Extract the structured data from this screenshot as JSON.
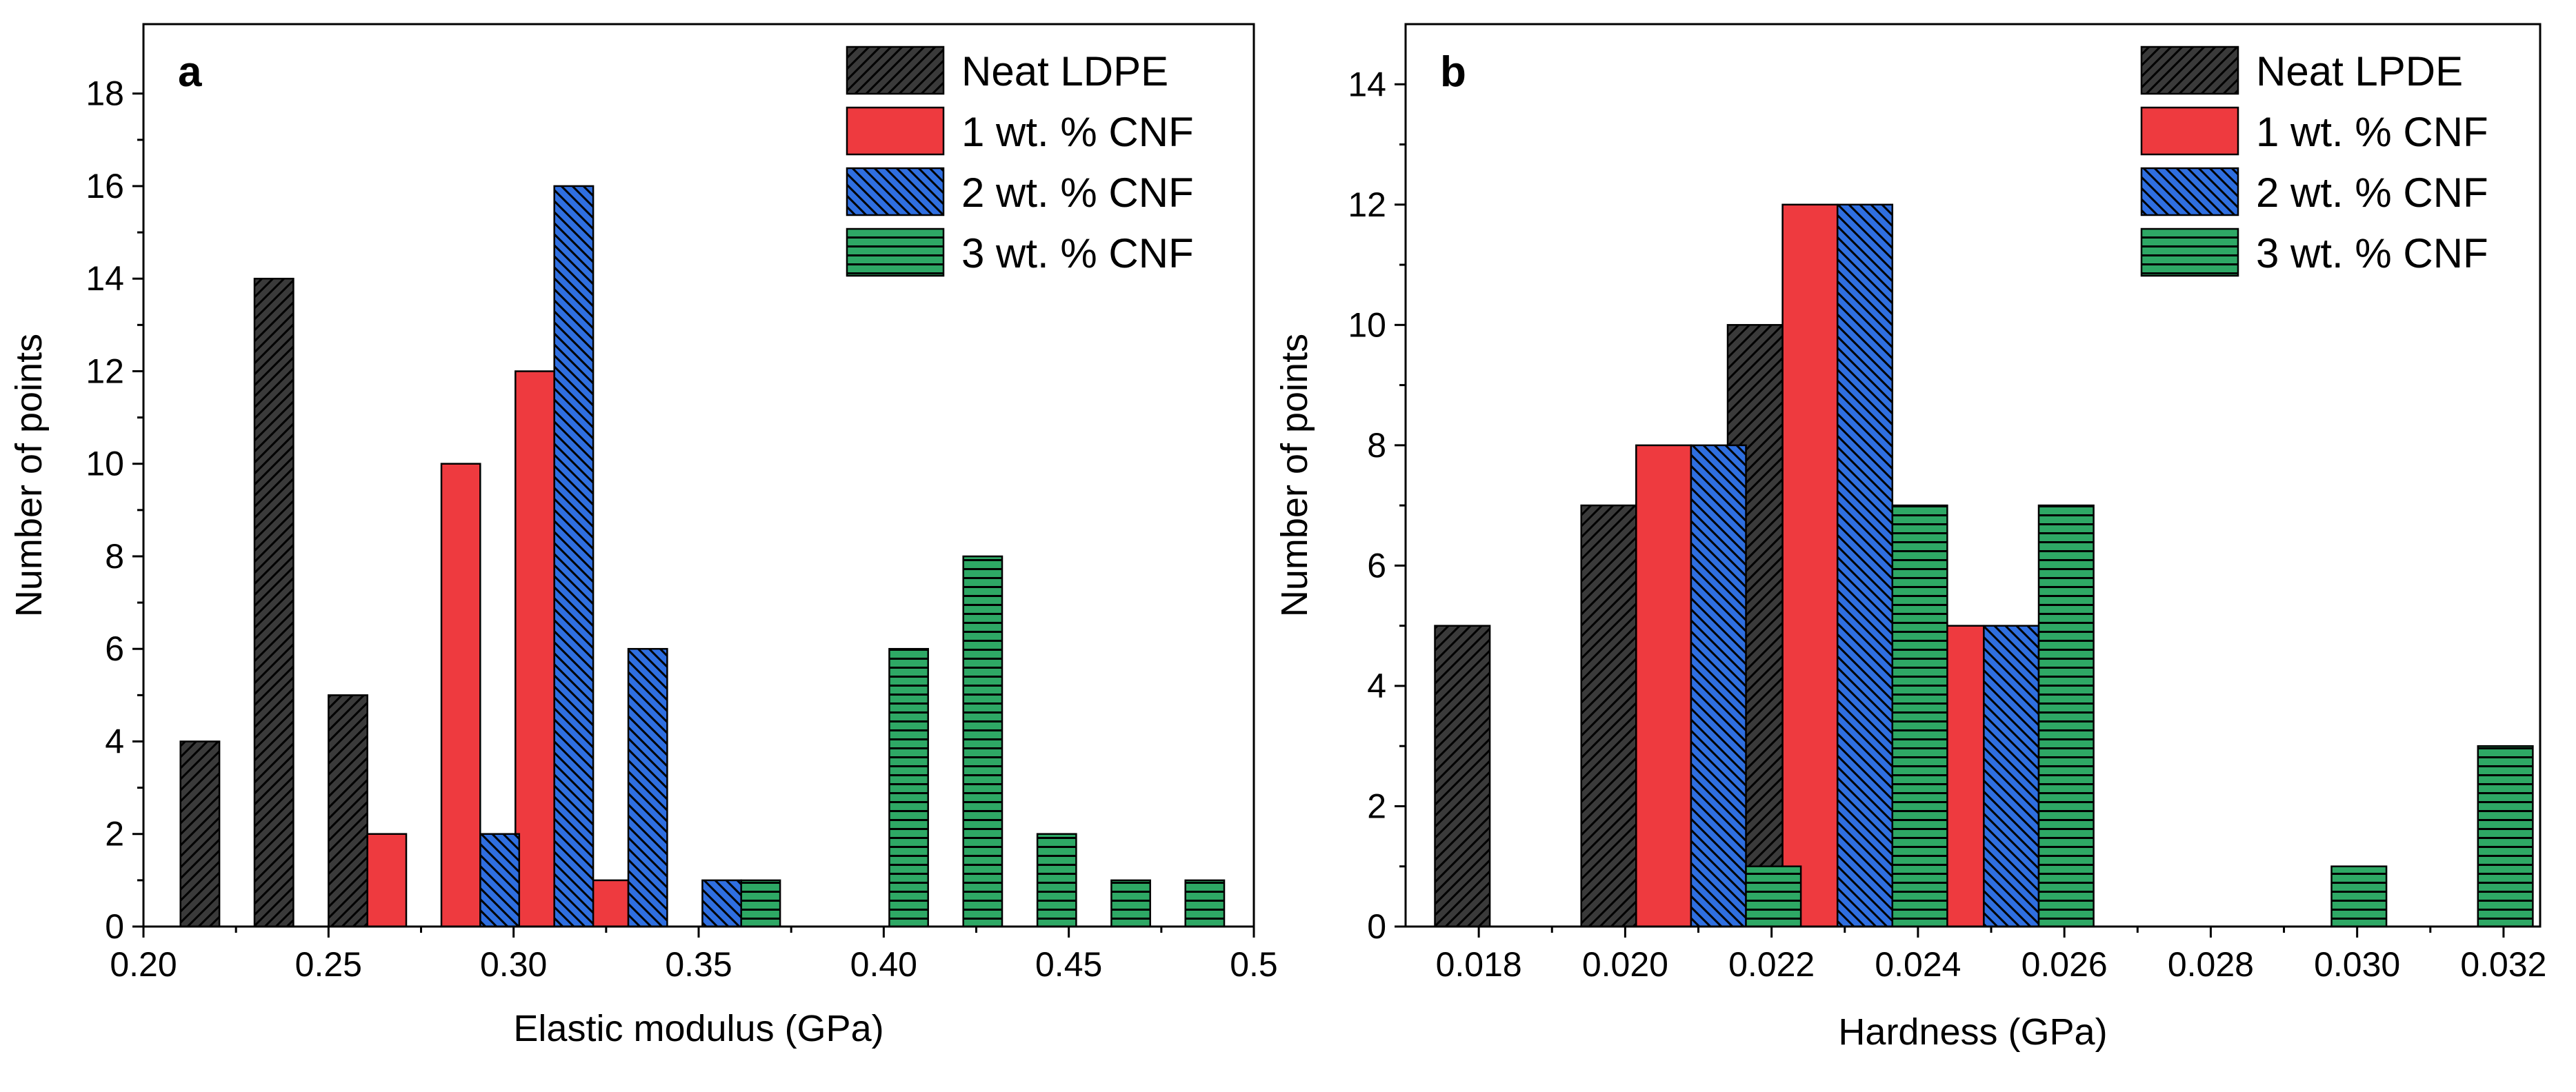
{
  "chart_data": [
    {
      "type": "bar",
      "panel": "a",
      "xlabel": "Elastic modulus (GPa)",
      "ylabel": "Number of points",
      "xlim": [
        0.2,
        0.5
      ],
      "ylim": [
        0,
        19.5
      ],
      "xticks": [
        0.2,
        0.25,
        0.3,
        0.35,
        0.4,
        0.45,
        0.5
      ],
      "xtick_labels": [
        "0.20",
        "0.25",
        "0.30",
        "0.35",
        "0.40",
        "0.45",
        "0.5"
      ],
      "yticks": [
        0,
        2,
        4,
        6,
        8,
        10,
        12,
        14,
        16,
        18
      ],
      "ytick_labels": [
        "0",
        "2",
        "4",
        "6",
        "8",
        "10",
        "12",
        "14",
        "16",
        "18"
      ],
      "bin_width": 0.02,
      "bar_width": 0.0105,
      "legend_position": "top-right",
      "series": [
        {
          "name": "Neat LDPE",
          "color": "#3a3a3a",
          "pattern": "diag-up",
          "offset": 0,
          "x": [
            0.21,
            0.23,
            0.25
          ],
          "values": [
            4,
            14,
            5
          ]
        },
        {
          "name": "1 wt. % CNF",
          "color": "#ee3a3f",
          "pattern": "solid",
          "offset": 0.0105,
          "x": [
            0.25,
            0.27,
            0.29,
            0.31
          ],
          "values": [
            2,
            10,
            12,
            1
          ]
        },
        {
          "name": "2 wt. % CNF",
          "color": "#2f6fe0",
          "pattern": "diag-down",
          "offset": 0.021,
          "x": [
            0.27,
            0.29,
            0.31,
            0.33
          ],
          "values": [
            2,
            16,
            6,
            1
          ]
        },
        {
          "name": "3 wt. % CNF",
          "color": "#2ea865",
          "pattern": "horiz",
          "offset": 0.0315,
          "x": [
            0.33,
            0.37,
            0.39,
            0.41,
            0.43,
            0.45
          ],
          "values": [
            1,
            6,
            8,
            2,
            1,
            1
          ]
        }
      ]
    },
    {
      "type": "bar",
      "panel": "b",
      "xlabel": "Hardness (GPa)",
      "ylabel": "Number of points",
      "xlim": [
        0.017,
        0.0325
      ],
      "ylim": [
        0,
        15
      ],
      "xticks": [
        0.018,
        0.02,
        0.022,
        0.024,
        0.026,
        0.028,
        0.03,
        0.032
      ],
      "xtick_labels": [
        "0.018",
        "0.020",
        "0.022",
        "0.024",
        "0.026",
        "0.028",
        "0.030",
        "0.032"
      ],
      "yticks": [
        0,
        2,
        4,
        6,
        8,
        10,
        12,
        14
      ],
      "ytick_labels": [
        "0",
        "2",
        "4",
        "6",
        "8",
        "10",
        "12",
        "14"
      ],
      "bin_width": 0.002,
      "bar_width": 0.00075,
      "legend_position": "top-right",
      "series": [
        {
          "name": "Neat LPDE",
          "color": "#3a3a3a",
          "pattern": "diag-up",
          "offset": 0,
          "x": [
            0.0174,
            0.0194,
            0.0214,
            0.0234
          ],
          "values": [
            5,
            7,
            10,
            1
          ]
        },
        {
          "name": "1 wt. % CNF",
          "color": "#ee3a3f",
          "pattern": "solid",
          "offset": 0.00075,
          "x": [
            0.0194,
            0.0214,
            0.0234
          ],
          "values": [
            8,
            12,
            5
          ]
        },
        {
          "name": "2 wt. % CNF",
          "color": "#2f6fe0",
          "pattern": "diag-down",
          "offset": 0.0015,
          "x": [
            0.0194,
            0.0214,
            0.0234
          ],
          "values": [
            8,
            12,
            5
          ]
        },
        {
          "name": "3 wt. % CNF",
          "color": "#2ea865",
          "pattern": "horiz",
          "offset": 0.00225,
          "x": [
            0.0194,
            0.0214,
            0.0234,
            0.0254,
            0.0274,
            0.0294
          ],
          "values": [
            1,
            7,
            7,
            0,
            1,
            3
          ]
        }
      ]
    }
  ]
}
